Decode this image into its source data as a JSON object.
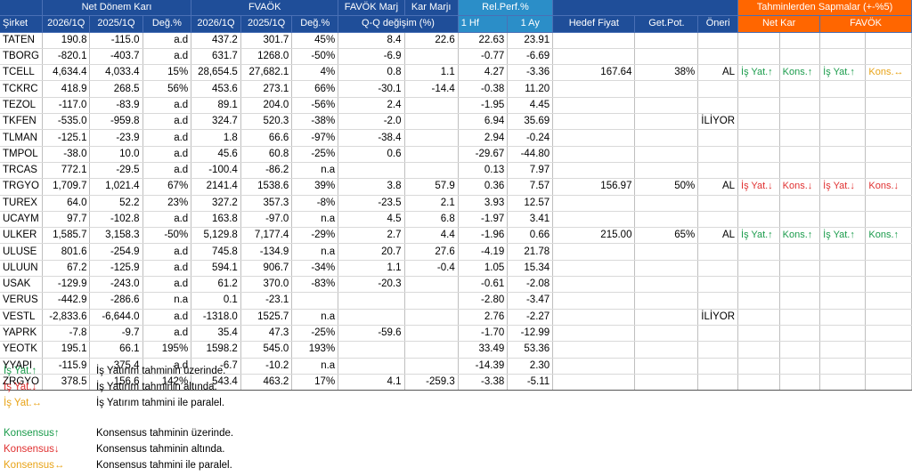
{
  "header1": {
    "net_donem_kari": "Net Dönem Karı",
    "favok": "FVAÖK",
    "favok_marj": "FAVÖK Marj",
    "kar_marji": "Kar Marjı",
    "rel_perf": "Rel.Perf.%",
    "tahmin_sapma": "Tahminlerden Sapmalar (+-%5)"
  },
  "header2": {
    "sirket": "Şirket",
    "n_2026": "2026/1Q",
    "n_2025": "2025/1Q",
    "n_deg": "Değ.%",
    "f_2026": "2026/1Q",
    "f_2025": "2025/1Q",
    "f_deg": "Değ.%",
    "qq": "Q-Q değişim (%)",
    "hf": "1 Hf",
    "ay": "1 Ay",
    "hedef": "Hedef Fiyat",
    "getpot": "Get.Pot.",
    "oneri": "Öneri",
    "net_kar": "Net Kar",
    "favok_sub": "FAVÖK"
  },
  "rows": [
    {
      "t": "TATEN",
      "n1": "190.8",
      "n2": "-115.0",
      "nd": "a.d",
      "f1": "437.2",
      "f2": "301.7",
      "fd": "45%",
      "fm": "8.4",
      "km": "22.6",
      "hf": "22.63",
      "ay": "23.91",
      "hedef": "",
      "gp": "",
      "on": "",
      "s1": "",
      "s2": "",
      "s3": "",
      "s4": ""
    },
    {
      "t": "TBORG",
      "n1": "-820.1",
      "n2": "-403.7",
      "nd": "a.d",
      "f1": "631.7",
      "f2": "1268.0",
      "fd": "-50%",
      "fm": "-6.9",
      "km": "",
      "hf": "-0.77",
      "ay": "-6.69",
      "hedef": "",
      "gp": "",
      "on": "",
      "s1": "",
      "s2": "",
      "s3": "",
      "s4": ""
    },
    {
      "t": "TCELL",
      "n1": "4,634.4",
      "n2": "4,033.4",
      "nd": "15%",
      "f1": "28,654.5",
      "f2": "27,682.1",
      "fd": "4%",
      "fm": "0.8",
      "km": "1.1",
      "hf": "4.27",
      "ay": "-3.36",
      "hedef": "167.64",
      "gp": "38%",
      "on": "AL",
      "s1": "İş Yat.↑",
      "s2": "Kons.↑",
      "s3": "İş Yat.↑",
      "s4": "Kons.↔"
    },
    {
      "t": "TCKRC",
      "n1": "418.9",
      "n2": "268.5",
      "nd": "56%",
      "f1": "453.6",
      "f2": "273.1",
      "fd": "66%",
      "fm": "-30.1",
      "km": "-14.4",
      "hf": "-0.38",
      "ay": "11.20",
      "hedef": "",
      "gp": "",
      "on": "",
      "s1": "",
      "s2": "",
      "s3": "",
      "s4": ""
    },
    {
      "t": "TEZOL",
      "n1": "-117.0",
      "n2": "-83.9",
      "nd": "a.d",
      "f1": "89.1",
      "f2": "204.0",
      "fd": "-56%",
      "fm": "2.4",
      "km": "",
      "hf": "-1.95",
      "ay": "4.45",
      "hedef": "",
      "gp": "",
      "on": "",
      "s1": "",
      "s2": "",
      "s3": "",
      "s4": ""
    },
    {
      "t": "TKFEN",
      "n1": "-535.0",
      "n2": "-959.8",
      "nd": "a.d",
      "f1": "324.7",
      "f2": "520.3",
      "fd": "-38%",
      "fm": "-2.0",
      "km": "",
      "hf": "6.94",
      "ay": "35.69",
      "hedef": "",
      "gp": "",
      "on": "İLİYOR",
      "s1": "",
      "s2": "",
      "s3": "",
      "s4": ""
    },
    {
      "t": "TLMAN",
      "n1": "-125.1",
      "n2": "-23.9",
      "nd": "a.d",
      "f1": "1.8",
      "f2": "66.6",
      "fd": "-97%",
      "fm": "-38.4",
      "km": "",
      "hf": "2.94",
      "ay": "-0.24",
      "hedef": "",
      "gp": "",
      "on": "",
      "s1": "",
      "s2": "",
      "s3": "",
      "s4": ""
    },
    {
      "t": "TMPOL",
      "n1": "-38.0",
      "n2": "10.0",
      "nd": "a.d",
      "f1": "45.6",
      "f2": "60.8",
      "fd": "-25%",
      "fm": "0.6",
      "km": "",
      "hf": "-29.67",
      "ay": "-44.80",
      "hedef": "",
      "gp": "",
      "on": "",
      "s1": "",
      "s2": "",
      "s3": "",
      "s4": ""
    },
    {
      "t": "TRCAS",
      "n1": "772.1",
      "n2": "-29.5",
      "nd": "a.d",
      "f1": "-100.4",
      "f2": "-86.2",
      "fd": "n.a",
      "fm": "",
      "km": "",
      "hf": "0.13",
      "ay": "7.97",
      "hedef": "",
      "gp": "",
      "on": "",
      "s1": "",
      "s2": "",
      "s3": "",
      "s4": ""
    },
    {
      "t": "TRGYO",
      "n1": "1,709.7",
      "n2": "1,021.4",
      "nd": "67%",
      "f1": "2141.4",
      "f2": "1538.6",
      "fd": "39%",
      "fm": "3.8",
      "km": "57.9",
      "hf": "0.36",
      "ay": "7.57",
      "hedef": "156.97",
      "gp": "50%",
      "on": "AL",
      "s1": "İş Yat.↓",
      "s2": "Kons.↓",
      "s3": "İş Yat.↓",
      "s4": "Kons.↓"
    },
    {
      "t": "TUREX",
      "n1": "64.0",
      "n2": "52.2",
      "nd": "23%",
      "f1": "327.2",
      "f2": "357.3",
      "fd": "-8%",
      "fm": "-23.5",
      "km": "2.1",
      "hf": "3.93",
      "ay": "12.57",
      "hedef": "",
      "gp": "",
      "on": "",
      "s1": "",
      "s2": "",
      "s3": "",
      "s4": ""
    },
    {
      "t": "UCAYM",
      "n1": "97.7",
      "n2": "-102.8",
      "nd": "a.d",
      "f1": "163.8",
      "f2": "-97.0",
      "fd": "n.a",
      "fm": "4.5",
      "km": "6.8",
      "hf": "-1.97",
      "ay": "3.41",
      "hedef": "",
      "gp": "",
      "on": "",
      "s1": "",
      "s2": "",
      "s3": "",
      "s4": ""
    },
    {
      "t": "ULKER",
      "n1": "1,585.7",
      "n2": "3,158.3",
      "nd": "-50%",
      "f1": "5,129.8",
      "f2": "7,177.4",
      "fd": "-29%",
      "fm": "2.7",
      "km": "4.4",
      "hf": "-1.96",
      "ay": "0.66",
      "hedef": "215.00",
      "gp": "65%",
      "on": "AL",
      "s1": "İş Yat.↑",
      "s2": "Kons.↑",
      "s3": "İş Yat.↑",
      "s4": "Kons.↑"
    },
    {
      "t": "ULUSE",
      "n1": "801.6",
      "n2": "-254.9",
      "nd": "a.d",
      "f1": "745.8",
      "f2": "-134.9",
      "fd": "n.a",
      "fm": "20.7",
      "km": "27.6",
      "hf": "-4.19",
      "ay": "21.78",
      "hedef": "",
      "gp": "",
      "on": "",
      "s1": "",
      "s2": "",
      "s3": "",
      "s4": ""
    },
    {
      "t": "ULUUN",
      "n1": "67.2",
      "n2": "-125.9",
      "nd": "a.d",
      "f1": "594.1",
      "f2": "906.7",
      "fd": "-34%",
      "fm": "1.1",
      "km": "-0.4",
      "hf": "1.05",
      "ay": "15.34",
      "hedef": "",
      "gp": "",
      "on": "",
      "s1": "",
      "s2": "",
      "s3": "",
      "s4": ""
    },
    {
      "t": "USAK",
      "n1": "-129.9",
      "n2": "-243.0",
      "nd": "a.d",
      "f1": "61.2",
      "f2": "370.0",
      "fd": "-83%",
      "fm": "-20.3",
      "km": "",
      "hf": "-0.61",
      "ay": "-2.08",
      "hedef": "",
      "gp": "",
      "on": "",
      "s1": "",
      "s2": "",
      "s3": "",
      "s4": ""
    },
    {
      "t": "VERUS",
      "n1": "-442.9",
      "n2": "-286.6",
      "nd": "n.a",
      "f1": "0.1",
      "f2": "-23.1",
      "fd": "",
      "fm": "",
      "km": "",
      "hf": "-2.80",
      "ay": "-3.47",
      "hedef": "",
      "gp": "",
      "on": "",
      "s1": "",
      "s2": "",
      "s3": "",
      "s4": ""
    },
    {
      "t": "VESTL",
      "n1": "-2,833.6",
      "n2": "-6,644.0",
      "nd": "a.d",
      "f1": "-1318.0",
      "f2": "1525.7",
      "fd": "n.a",
      "fm": "",
      "km": "",
      "hf": "2.76",
      "ay": "-2.27",
      "hedef": "",
      "gp": "",
      "on": "İLİYOR",
      "s1": "",
      "s2": "",
      "s3": "",
      "s4": ""
    },
    {
      "t": "YAPRK",
      "n1": "-7.8",
      "n2": "-9.7",
      "nd": "a.d",
      "f1": "35.4",
      "f2": "47.3",
      "fd": "-25%",
      "fm": "-59.6",
      "km": "",
      "hf": "-1.70",
      "ay": "-12.99",
      "hedef": "",
      "gp": "",
      "on": "",
      "s1": "",
      "s2": "",
      "s3": "",
      "s4": ""
    },
    {
      "t": "YEOTK",
      "n1": "195.1",
      "n2": "66.1",
      "nd": "195%",
      "f1": "1598.2",
      "f2": "545.0",
      "fd": "193%",
      "fm": "",
      "km": "",
      "hf": "33.49",
      "ay": "53.36",
      "hedef": "",
      "gp": "",
      "on": "",
      "s1": "",
      "s2": "",
      "s3": "",
      "s4": ""
    },
    {
      "t": "YYAPI",
      "n1": "-115.9",
      "n2": "375.4",
      "nd": "a.d",
      "f1": "-6.7",
      "f2": "-10.2",
      "fd": "n.a",
      "fm": "",
      "km": "",
      "hf": "-14.39",
      "ay": "2.30",
      "hedef": "",
      "gp": "",
      "on": "",
      "s1": "",
      "s2": "",
      "s3": "",
      "s4": ""
    },
    {
      "t": "ZRGYO",
      "n1": "378.5",
      "n2": "156.6",
      "nd": "142%",
      "f1": "543.4",
      "f2": "463.2",
      "fd": "17%",
      "fm": "4.1",
      "km": "-259.3",
      "hf": "-3.38",
      "ay": "-5.11",
      "hedef": "",
      "gp": "",
      "on": "",
      "s1": "",
      "s2": "",
      "s3": "",
      "s4": ""
    }
  ],
  "signal_colors": {
    "up": "#1a9b4b",
    "down": "#e03030",
    "flat": "#e8a317"
  },
  "legend": [
    {
      "label": "İş Yat.↑",
      "desc": "İş Yatırım tahminin üzerinde.",
      "color": "green"
    },
    {
      "label": "İş Yat.↓",
      "desc": "İş Yatırım tahminin altında.",
      "color": "red"
    },
    {
      "label": "İş Yat.↔",
      "desc": "İş Yatırım tahmini ile paralel.",
      "color": "orange"
    },
    {
      "label": "Konsensus↑",
      "desc": "Konsensus tahminin üzerinde.",
      "color": "green"
    },
    {
      "label": "Konsensus↓",
      "desc": "Konsensus tahminin altında.",
      "color": "red"
    },
    {
      "label": "Konsensus↔",
      "desc": "Konsensus tahmini ile paralel.",
      "color": "orange"
    }
  ]
}
